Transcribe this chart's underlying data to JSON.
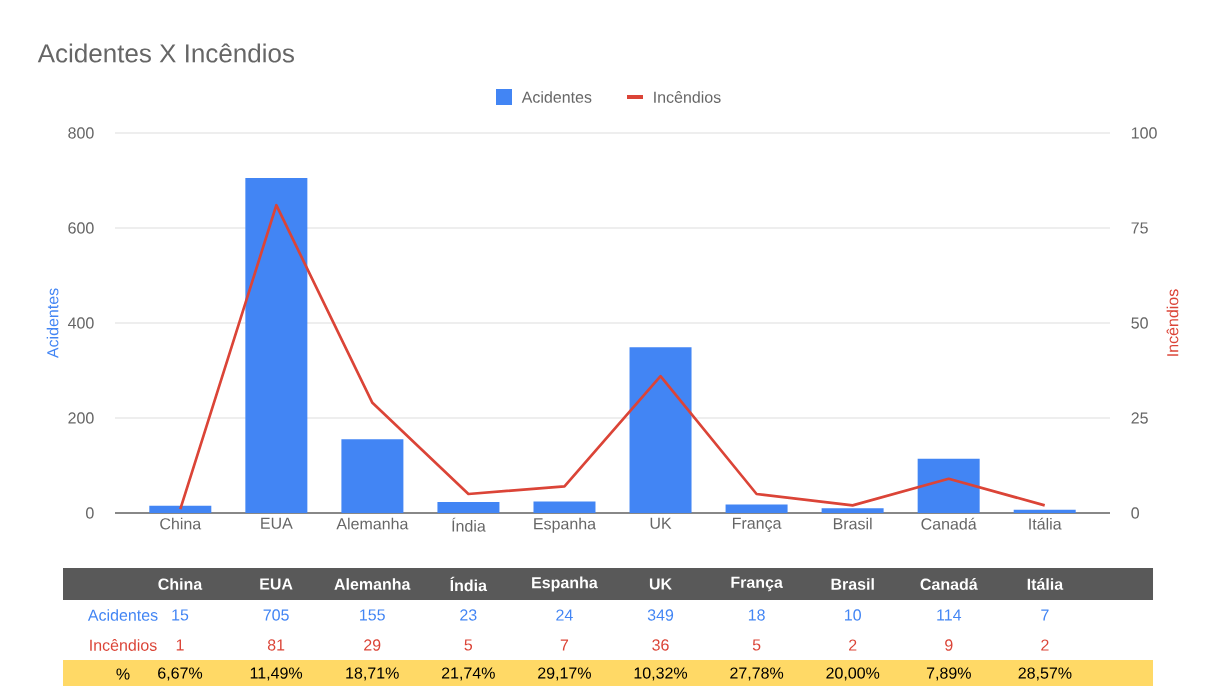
{
  "chart_data": {
    "type": "bar",
    "title": "Acidentes X Incêndios",
    "ylabel": "Acidentes",
    "y2label": "Incêndios",
    "categories": [
      "China",
      "EUA",
      "Alemanha",
      "Índia",
      "Espanha",
      "UK",
      "França",
      "Brasil",
      "Canadá",
      "Itália"
    ],
    "series": [
      {
        "name": "Acidentes",
        "color": "#4285f4",
        "values": [
          15,
          705,
          155,
          23,
          24,
          349,
          18,
          10,
          114,
          7
        ]
      },
      {
        "name": "Incêndios",
        "type": "line",
        "axis": "y2",
        "color": "#db4437",
        "values": [
          1,
          81,
          29,
          5,
          7,
          36,
          5,
          2,
          9,
          2
        ]
      }
    ],
    "ylim": [
      0,
      800
    ],
    "yticks": [
      0,
      200,
      400,
      600,
      800
    ],
    "y2lim": [
      0,
      100
    ],
    "y2ticks": [
      0,
      25,
      50,
      75,
      100
    ],
    "grid": "y",
    "legend": "top",
    "data_labels": true,
    "marker": "none",
    "annotations": [
      "%",
      "6,67%",
      "11,49%",
      "18,71%",
      "21,74%",
      "29,17%",
      "10,32%",
      "27,78%",
      "20,00%",
      "7,89%",
      "28,57%"
    ]
  }
}
